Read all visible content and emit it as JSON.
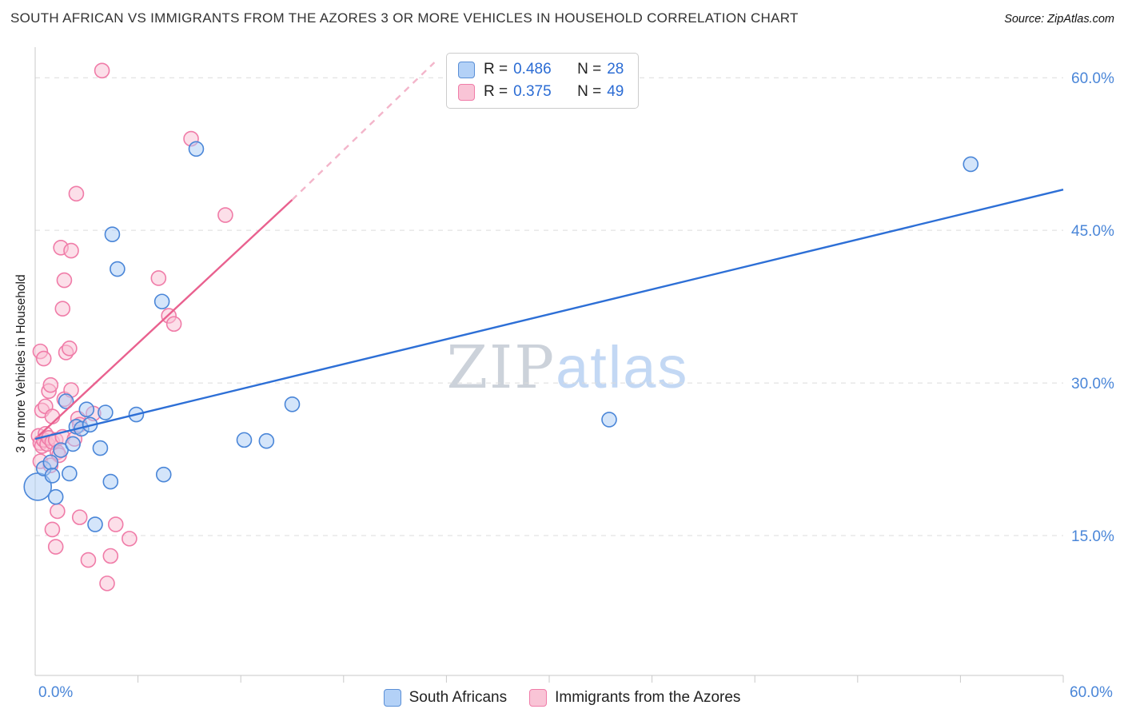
{
  "header": {
    "title": "SOUTH AFRICAN VS IMMIGRANTS FROM THE AZORES 3 OR MORE VEHICLES IN HOUSEHOLD CORRELATION CHART",
    "source": "Source: ZipAtlas.com"
  },
  "watermark": {
    "zip": "ZIP",
    "atlas": "atlas"
  },
  "legend_box": {
    "series": [
      {
        "r_label": "R =",
        "r_value": "0.486",
        "n_label": "N =",
        "n_value": "28",
        "color": "#b3d1f7",
        "border": "#5a8fd6"
      },
      {
        "r_label": "R =",
        "r_value": "0.375",
        "n_label": "N =",
        "n_value": "49",
        "color": "#f9c4d6",
        "border": "#f07ca8"
      }
    ]
  },
  "bottom_legend": {
    "items": [
      {
        "label": "South Africans",
        "color": "#b3d1f7",
        "border": "#5a8fd6"
      },
      {
        "label": "Immigrants from the Azores",
        "color": "#f9c4d6",
        "border": "#f07ca8"
      }
    ]
  },
  "chart_data": {
    "type": "scatter",
    "title": "SOUTH AFRICAN VS IMMIGRANTS FROM THE AZORES 3 OR MORE VEHICLES IN HOUSEHOLD CORRELATION CHART",
    "xlabel": "",
    "ylabel": "3 or more Vehicles in Household",
    "xlim": [
      0,
      60
    ],
    "ylim": [
      0,
      63
    ],
    "x_tick_interval": 6,
    "grid": "horizontal-dashed",
    "legend_position": "top-center and bottom-center",
    "axis_label_color": "#4a86d8",
    "x_axis_labels": [
      {
        "value": 0,
        "label": "0.0%"
      },
      {
        "value": 60,
        "label": "60.0%"
      }
    ],
    "y_ticks": [
      {
        "value": 60,
        "label": "60.0%"
      },
      {
        "value": 45,
        "label": "45.0%"
      },
      {
        "value": 30,
        "label": "30.0%"
      },
      {
        "value": 15,
        "label": "15.0%"
      }
    ],
    "point_units": "[x_percent, y_percent, marker_radius_px]",
    "series": [
      {
        "id": "south-africans",
        "name": "South Africans",
        "r": 0.486,
        "n": 28,
        "fill": "#a9ccf6",
        "stroke": "#4a86d8",
        "points": [
          [
            0.15,
            19.8,
            17
          ],
          [
            0.5,
            21.6,
            9
          ],
          [
            0.9,
            22.2,
            9
          ],
          [
            1.0,
            20.9,
            9
          ],
          [
            1.2,
            18.8,
            9
          ],
          [
            1.5,
            23.4,
            9
          ],
          [
            1.8,
            28.2,
            9
          ],
          [
            2.0,
            21.1,
            9
          ],
          [
            2.2,
            24.0,
            9
          ],
          [
            2.4,
            25.7,
            9
          ],
          [
            2.7,
            25.5,
            9
          ],
          [
            3.0,
            27.4,
            9
          ],
          [
            3.2,
            25.9,
            9
          ],
          [
            3.5,
            16.1,
            9
          ],
          [
            3.8,
            23.6,
            9
          ],
          [
            4.1,
            27.1,
            9
          ],
          [
            4.4,
            20.3,
            9
          ],
          [
            4.5,
            44.6,
            9
          ],
          [
            4.8,
            41.2,
            9
          ],
          [
            5.9,
            26.9,
            9
          ],
          [
            7.4,
            38.0,
            9
          ],
          [
            7.5,
            21.0,
            9
          ],
          [
            9.4,
            53.0,
            9
          ],
          [
            12.2,
            24.4,
            9
          ],
          [
            13.5,
            24.3,
            9
          ],
          [
            15.0,
            27.9,
            9
          ],
          [
            33.5,
            26.4,
            9
          ],
          [
            54.6,
            51.5,
            9
          ]
        ]
      },
      {
        "id": "azores-immigrants",
        "name": "Immigrants from the Azores",
        "r": 0.375,
        "n": 49,
        "fill": "#f9c0d3",
        "stroke": "#f07ca8",
        "points": [
          [
            3.9,
            60.7,
            9
          ],
          [
            9.1,
            54.0,
            9
          ],
          [
            2.4,
            48.6,
            9
          ],
          [
            11.1,
            46.5,
            9
          ],
          [
            1.5,
            43.3,
            9
          ],
          [
            2.1,
            43.0,
            9
          ],
          [
            1.7,
            40.1,
            9
          ],
          [
            7.2,
            40.3,
            9
          ],
          [
            1.6,
            37.3,
            9
          ],
          [
            7.8,
            36.6,
            9
          ],
          [
            8.1,
            35.8,
            9
          ],
          [
            0.3,
            33.1,
            9
          ],
          [
            0.5,
            32.4,
            9
          ],
          [
            1.8,
            33.0,
            9
          ],
          [
            2.0,
            33.4,
            9
          ],
          [
            0.8,
            29.2,
            9
          ],
          [
            0.9,
            29.8,
            9
          ],
          [
            1.7,
            28.4,
            9
          ],
          [
            2.1,
            29.3,
            9
          ],
          [
            0.4,
            27.3,
            9
          ],
          [
            0.6,
            27.7,
            9
          ],
          [
            1.0,
            26.7,
            9
          ],
          [
            2.5,
            26.5,
            9
          ],
          [
            3.4,
            27.0,
            9
          ],
          [
            0.2,
            24.8,
            9
          ],
          [
            0.3,
            24.1,
            9
          ],
          [
            0.4,
            23.8,
            9
          ],
          [
            0.5,
            24.4,
            9
          ],
          [
            0.6,
            25.0,
            9
          ],
          [
            0.7,
            24.0,
            9
          ],
          [
            0.8,
            24.6,
            9
          ],
          [
            1.0,
            24.2,
            9
          ],
          [
            1.2,
            24.4,
            9
          ],
          [
            1.3,
            23.2,
            9
          ],
          [
            1.4,
            22.9,
            9
          ],
          [
            1.6,
            24.7,
            9
          ],
          [
            2.3,
            24.5,
            9
          ],
          [
            2.6,
            25.9,
            9
          ],
          [
            0.3,
            22.3,
            9
          ],
          [
            0.9,
            21.9,
            9
          ],
          [
            1.3,
            17.4,
            9
          ],
          [
            1.0,
            15.6,
            9
          ],
          [
            1.2,
            13.9,
            9
          ],
          [
            2.6,
            16.8,
            9
          ],
          [
            3.1,
            12.6,
            9
          ],
          [
            4.2,
            10.3,
            9
          ],
          [
            4.4,
            13.0,
            9
          ],
          [
            4.7,
            16.1,
            9
          ],
          [
            5.5,
            14.7,
            9
          ]
        ]
      }
    ],
    "trend_lines": [
      {
        "series": "South Africans",
        "color": "#2d6fd6",
        "style": "solid",
        "x1": 0,
        "y1": 24.5,
        "x2": 60,
        "y2": 49.0
      },
      {
        "series": "Immigrants from the Azores",
        "color": "#e9618f",
        "style": "solid",
        "x1": 0.2,
        "y1": 24.8,
        "x2": 15.0,
        "y2": 48.0
      },
      {
        "series": "Immigrants from the Azores",
        "color": "#f3b5ca",
        "style": "dashed",
        "x1": 15.0,
        "y1": 48.0,
        "x2": 23.3,
        "y2": 61.5
      }
    ]
  }
}
